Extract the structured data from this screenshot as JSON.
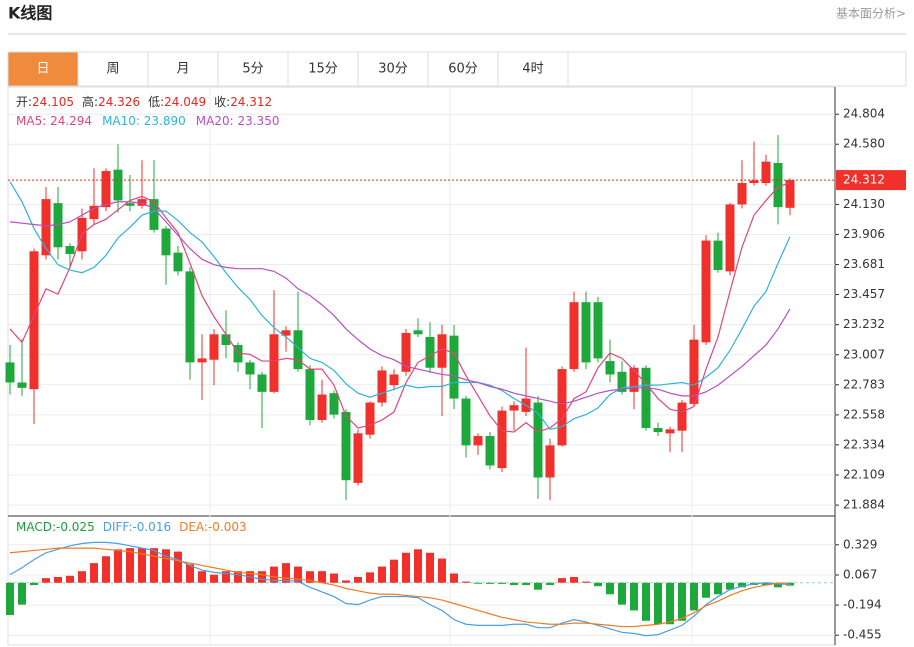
{
  "header": {
    "title": "K线图",
    "link": "基本面分析>"
  },
  "tabs": [
    "日",
    "周",
    "月",
    "5分",
    "15分",
    "30分",
    "60分",
    "4时"
  ],
  "active_tab": 0,
  "chart_data": [
    {
      "type": "candlestick",
      "up_color": "#f0302a",
      "down_color": "#1ea83c",
      "info": [
        {
          "label": "开:",
          "value": "24.105",
          "color": "#e8251f"
        },
        {
          "label": "高:",
          "value": "24.326",
          "color": "#e8251f"
        },
        {
          "label": "低:",
          "value": "24.049",
          "color": "#e8251f"
        },
        {
          "label": "收:",
          "value": "24.312",
          "color": "#e8251f"
        }
      ],
      "open": [
        22.95,
        22.8,
        22.75,
        23.75,
        24.14,
        23.82,
        23.78,
        24.02,
        24.11,
        24.39,
        24.14,
        24.12,
        24.17,
        23.95,
        23.77,
        23.63,
        22.95,
        22.97,
        23.16,
        23.08,
        22.95,
        22.86,
        22.73,
        23.15,
        23.19,
        22.9,
        22.52,
        22.72,
        22.58,
        22.05,
        22.41,
        22.65,
        22.78,
        22.88,
        23.19,
        23.14,
        22.91,
        23.15,
        22.68,
        22.33,
        22.4,
        22.16,
        22.59,
        22.58,
        22.65,
        22.09,
        22.33,
        22.9,
        23.4,
        23.4,
        22.96,
        22.88,
        22.73,
        22.91,
        22.46,
        22.42,
        22.44,
        22.64,
        23.1,
        23.86,
        23.63,
        24.13,
        24.29,
        24.29,
        24.44,
        24.105
      ],
      "high": [
        23.08,
        23.12,
        23.8,
        24.26,
        24.26,
        23.84,
        24.1,
        24.4,
        24.4,
        24.58,
        24.35,
        24.46,
        24.46,
        23.97,
        23.82,
        23.66,
        23.16,
        23.2,
        23.34,
        23.1,
        22.97,
        22.88,
        23.49,
        23.22,
        23.48,
        22.93,
        22.82,
        22.74,
        22.6,
        22.45,
        22.66,
        22.92,
        22.9,
        23.2,
        23.28,
        23.25,
        23.23,
        23.23,
        22.7,
        22.42,
        22.43,
        22.62,
        22.66,
        23.06,
        22.7,
        22.38,
        22.92,
        23.48,
        23.48,
        23.44,
        23.12,
        22.96,
        22.93,
        22.93,
        22.5,
        22.47,
        22.67,
        23.23,
        23.9,
        23.92,
        24.14,
        24.46,
        24.6,
        24.5,
        24.65,
        24.326
      ],
      "low": [
        22.71,
        22.7,
        22.49,
        23.72,
        23.72,
        23.66,
        23.72,
        23.98,
        24.08,
        24.07,
        24.08,
        24.1,
        23.92,
        23.53,
        23.6,
        22.82,
        22.67,
        22.78,
        22.98,
        22.88,
        22.75,
        22.46,
        22.72,
        23.03,
        22.88,
        22.48,
        22.5,
        22.53,
        21.92,
        22.03,
        22.38,
        22.62,
        22.74,
        22.85,
        23.14,
        22.87,
        22.55,
        22.6,
        22.24,
        22.26,
        22.15,
        22.13,
        22.44,
        22.55,
        21.93,
        21.92,
        22.32,
        22.88,
        22.9,
        22.95,
        22.8,
        22.71,
        22.6,
        22.44,
        22.4,
        22.28,
        22.28,
        22.62,
        23.08,
        23.62,
        23.6,
        24.1,
        24.27,
        24.27,
        23.98,
        24.049
      ],
      "close": [
        22.8,
        22.76,
        23.78,
        24.17,
        23.81,
        23.76,
        24.03,
        24.12,
        24.38,
        24.16,
        24.12,
        24.17,
        23.94,
        23.75,
        23.63,
        22.95,
        22.98,
        23.16,
        23.08,
        22.95,
        22.86,
        22.73,
        23.16,
        23.19,
        22.9,
        22.52,
        22.71,
        22.56,
        22.07,
        22.42,
        22.65,
        22.89,
        22.86,
        23.17,
        23.16,
        22.91,
        23.16,
        22.68,
        22.33,
        22.4,
        22.18,
        22.59,
        22.63,
        22.68,
        22.09,
        22.33,
        22.9,
        23.4,
        22.95,
        22.98,
        22.86,
        22.73,
        22.91,
        22.46,
        22.43,
        22.45,
        22.65,
        23.12,
        23.86,
        23.64,
        24.13,
        24.29,
        24.31,
        24.45,
        24.11,
        24.312
      ],
      "series": [
        {
          "name": "MA5: ",
          "label": "24.294",
          "color": "#e0457b",
          "values": [
            23.2,
            23.1,
            23.3,
            23.5,
            23.46,
            23.66,
            23.91,
            23.98,
            24.02,
            24.09,
            24.16,
            24.19,
            24.15,
            24.03,
            23.92,
            23.69,
            23.45,
            23.29,
            23.16,
            23.02,
            23.01,
            22.96,
            22.96,
            22.98,
            22.97,
            22.9,
            22.9,
            22.78,
            22.55,
            22.46,
            22.48,
            22.52,
            22.58,
            22.8,
            22.95,
            23.0,
            23.05,
            23.02,
            22.85,
            22.7,
            22.55,
            22.44,
            22.43,
            22.5,
            22.43,
            22.46,
            22.53,
            22.68,
            22.73,
            22.91,
            23.02,
            22.98,
            22.89,
            22.79,
            22.68,
            22.6,
            22.58,
            22.62,
            22.9,
            23.14,
            23.48,
            23.81,
            24.05,
            24.16,
            24.26,
            24.294
          ]
        },
        {
          "name": "MA10: ",
          "label": "23.890",
          "color": "#2db4d6",
          "values": [
            24.3,
            24.15,
            23.95,
            23.8,
            23.68,
            23.64,
            23.62,
            23.66,
            23.75,
            23.88,
            23.96,
            24.05,
            24.08,
            24.08,
            24.01,
            23.92,
            23.85,
            23.74,
            23.62,
            23.51,
            23.42,
            23.3,
            23.21,
            23.14,
            23.06,
            22.98,
            22.95,
            22.89,
            22.79,
            22.72,
            22.69,
            22.72,
            22.75,
            22.78,
            22.76,
            22.77,
            22.77,
            22.8,
            22.8,
            22.8,
            22.78,
            22.74,
            22.68,
            22.63,
            22.57,
            22.45,
            22.47,
            22.53,
            22.56,
            22.61,
            22.71,
            22.76,
            22.77,
            22.78,
            22.78,
            22.79,
            22.8,
            22.78,
            22.84,
            22.91,
            23.04,
            23.2,
            23.37,
            23.48,
            23.69,
            23.89
          ]
        },
        {
          "name": "MA20: ",
          "label": "23.350",
          "color": "#b64fc0",
          "values": [
            24.0,
            23.99,
            23.98,
            23.97,
            23.98,
            24.0,
            24.05,
            24.1,
            24.13,
            24.15,
            24.15,
            24.14,
            24.1,
            24.0,
            23.9,
            23.8,
            23.72,
            23.68,
            23.66,
            23.65,
            23.65,
            23.65,
            23.63,
            23.58,
            23.5,
            23.45,
            23.38,
            23.3,
            23.2,
            23.12,
            23.05,
            23.0,
            22.97,
            22.92,
            22.9,
            22.88,
            22.86,
            22.85,
            22.82,
            22.8,
            22.77,
            22.75,
            22.72,
            22.7,
            22.68,
            22.66,
            22.64,
            22.66,
            22.69,
            22.72,
            22.74,
            22.75,
            22.76,
            22.76,
            22.75,
            22.72,
            22.7,
            22.7,
            22.73,
            22.78,
            22.85,
            22.92,
            23.0,
            23.08,
            23.2,
            23.35
          ]
        }
      ],
      "ylim": [
        21.81,
        25.0
      ],
      "yticks": [
        24.804,
        {
          "value": 24.58,
          "label": "24.580"
        },
        {
          "value": 24.13,
          "label": "24.130"
        },
        23.906,
        23.681,
        23.457,
        23.232,
        23.007,
        22.783,
        22.558,
        22.334,
        22.109,
        21.884
      ],
      "grid": true
    },
    {
      "type": "macd",
      "up_color": "#f0302a",
      "down_color": "#1ea83c",
      "info": [
        {
          "label": "MACD:",
          "value": "-0.025",
          "color": "#1a9e3a"
        },
        {
          "label": "DIFF:",
          "value": "-0.016",
          "color": "#4a9fe0"
        },
        {
          "label": "DEA:",
          "value": "-0.003",
          "color": "#f07b22"
        }
      ],
      "values": [
        -0.28,
        -0.19,
        -0.02,
        0.04,
        0.05,
        0.06,
        0.1,
        0.17,
        0.23,
        0.29,
        0.3,
        0.3,
        0.3,
        0.29,
        0.27,
        0.16,
        0.1,
        0.07,
        0.1,
        0.1,
        0.1,
        0.1,
        0.14,
        0.17,
        0.14,
        0.1,
        0.1,
        0.08,
        0.02,
        0.05,
        0.09,
        0.14,
        0.2,
        0.26,
        0.29,
        0.26,
        0.21,
        0.08,
        0.01,
        -0.005,
        -0.01,
        -0.01,
        -0.02,
        -0.02,
        -0.06,
        -0.02,
        0.04,
        0.05,
        0.01,
        -0.03,
        -0.1,
        -0.19,
        -0.24,
        -0.33,
        -0.36,
        -0.36,
        -0.33,
        -0.24,
        -0.13,
        -0.1,
        -0.06,
        -0.04,
        -0.02,
        -0.02,
        -0.04,
        -0.025
      ],
      "series": [
        {
          "name": "DIFF",
          "color": "#4a9fe0",
          "values": [
            0.07,
            0.13,
            0.2,
            0.26,
            0.29,
            0.32,
            0.34,
            0.35,
            0.35,
            0.34,
            0.32,
            0.3,
            0.28,
            0.23,
            0.2,
            0.15,
            0.11,
            0.09,
            0.08,
            0.07,
            0.05,
            0.03,
            0.02,
            0.02,
            0.01,
            -0.04,
            -0.08,
            -0.12,
            -0.18,
            -0.19,
            -0.15,
            -0.12,
            -0.12,
            -0.12,
            -0.13,
            -0.19,
            -0.24,
            -0.32,
            -0.36,
            -0.37,
            -0.37,
            -0.37,
            -0.36,
            -0.36,
            -0.39,
            -0.39,
            -0.35,
            -0.32,
            -0.34,
            -0.37,
            -0.4,
            -0.43,
            -0.44,
            -0.46,
            -0.45,
            -0.41,
            -0.37,
            -0.29,
            -0.19,
            -0.12,
            -0.06,
            -0.03,
            -0.01,
            0.0,
            -0.01,
            -0.016
          ]
        },
        {
          "name": "DEA",
          "color": "#f07b22",
          "values": [
            0.26,
            0.27,
            0.28,
            0.29,
            0.3,
            0.3,
            0.3,
            0.3,
            0.29,
            0.28,
            0.27,
            0.25,
            0.23,
            0.21,
            0.19,
            0.17,
            0.15,
            0.13,
            0.11,
            0.09,
            0.08,
            0.07,
            0.05,
            0.04,
            0.03,
            0.02,
            0.0,
            -0.02,
            -0.05,
            -0.07,
            -0.09,
            -0.1,
            -0.1,
            -0.11,
            -0.12,
            -0.13,
            -0.15,
            -0.18,
            -0.21,
            -0.24,
            -0.27,
            -0.3,
            -0.32,
            -0.34,
            -0.35,
            -0.36,
            -0.36,
            -0.35,
            -0.35,
            -0.36,
            -0.37,
            -0.38,
            -0.38,
            -0.37,
            -0.36,
            -0.34,
            -0.31,
            -0.26,
            -0.2,
            -0.16,
            -0.11,
            -0.07,
            -0.04,
            -0.02,
            -0.005,
            -0.003
          ]
        }
      ],
      "ylim": [
        -0.54,
        0.57
      ],
      "yticks": [
        0.329,
        0.067,
        -0.194,
        -0.455
      ],
      "grid": true
    }
  ]
}
